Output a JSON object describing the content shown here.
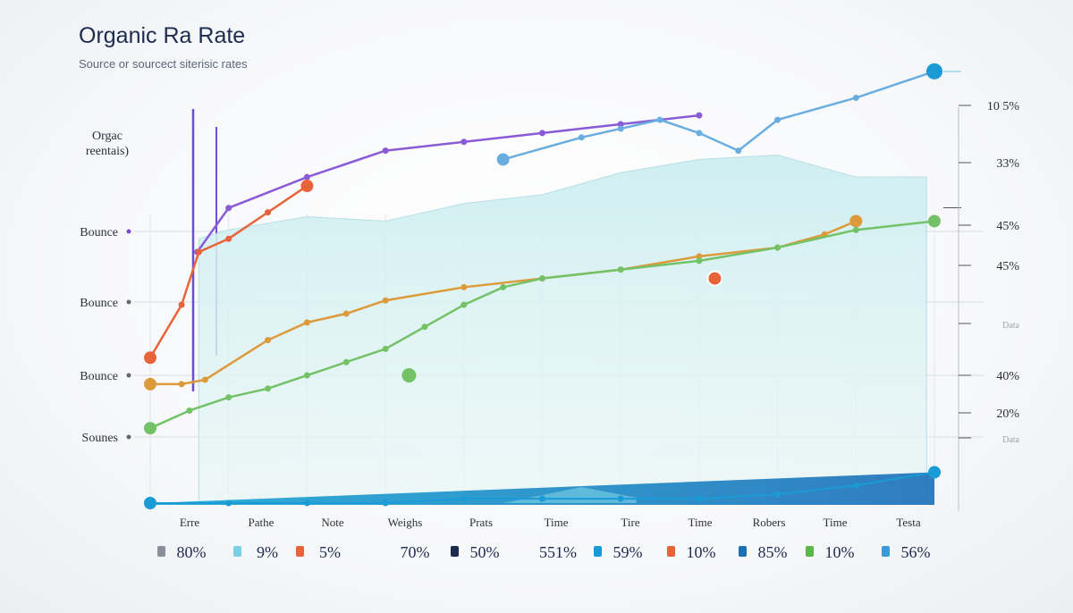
{
  "chart_data": {
    "type": "line",
    "title": "Organic Ra Rate",
    "subtitle": "Source or sourcect siterisic rates",
    "ylabel": [
      "Orgac",
      "reentais)"
    ],
    "categories": [
      "Erre",
      "Pathe",
      "Note",
      "Weighs",
      "Prats",
      "Time",
      "Tire",
      "Time",
      "Robers",
      "Time",
      "Testa"
    ],
    "bottom_values": [
      "80%",
      "9%",
      "5%",
      "70%",
      "50%",
      "551%",
      "59%",
      "10%",
      "85%",
      "10%",
      "56%"
    ],
    "left_ticks": [
      "Bounce",
      "Bounce",
      "Bounce",
      "Sounes"
    ],
    "right_ticks": [
      "10 5%",
      "33%",
      "45%",
      "45%",
      "Data",
      "40%",
      "20%",
      "Data"
    ],
    "ylim": [
      0,
      100
    ],
    "area": {
      "x": [
        0.62,
        1,
        2,
        3,
        4,
        5,
        6,
        7,
        8,
        9,
        9.9
      ],
      "y": [
        60,
        62,
        65,
        64,
        68,
        70,
        75,
        78,
        79,
        74,
        74
      ]
    },
    "series": [
      {
        "name": "",
        "color": "#8a5bd6",
        "x": [
          0.6,
          1,
          2,
          3,
          4,
          5,
          6,
          7
        ],
        "y": [
          57,
          67,
          74,
          80,
          82,
          84,
          86,
          88
        ]
      },
      {
        "name": "",
        "color": "#e8633a",
        "x": [
          0,
          0.4,
          0.62,
          1,
          1.5,
          2
        ],
        "y": [
          33,
          45,
          57,
          60,
          66,
          72
        ]
      },
      {
        "name": "",
        "color": "#6aaee0",
        "x": [
          4.5,
          5.5,
          6,
          6.5,
          7,
          7.5,
          8,
          9,
          10
        ],
        "y": [
          78,
          83,
          85,
          87,
          84,
          80,
          87,
          92,
          98
        ]
      },
      {
        "name": "",
        "color": "#dd9a3b",
        "x": [
          0,
          0.4,
          0.7,
          1.5,
          2,
          2.5,
          3,
          4,
          5,
          6,
          7,
          8,
          8.6,
          9
        ],
        "y": [
          27,
          27,
          28,
          37,
          41,
          43,
          46,
          49,
          51,
          53,
          56,
          58,
          61,
          64
        ]
      },
      {
        "name": "",
        "color": "#74c267",
        "x": [
          0,
          0.5,
          1,
          1.5,
          2,
          2.5,
          3,
          3.5,
          4,
          4.5,
          5,
          6,
          7,
          8,
          9,
          10
        ],
        "y": [
          17,
          21,
          24,
          26,
          29,
          32,
          35,
          40,
          45,
          49,
          51,
          53,
          55,
          58,
          62,
          64
        ]
      },
      {
        "name": "",
        "color": "#1a9bd6",
        "x": [
          0,
          1,
          2,
          3,
          4,
          5,
          6,
          7,
          8,
          9,
          10
        ],
        "y": [
          0,
          0,
          0,
          0,
          1,
          1,
          1,
          1,
          2,
          4,
          7
        ]
      }
    ],
    "colors": {
      "accent": "#1a9bd6",
      "area_fill": "#d6f0f2",
      "grid": "#c9d3dc"
    },
    "grid": true,
    "legend": "none"
  }
}
